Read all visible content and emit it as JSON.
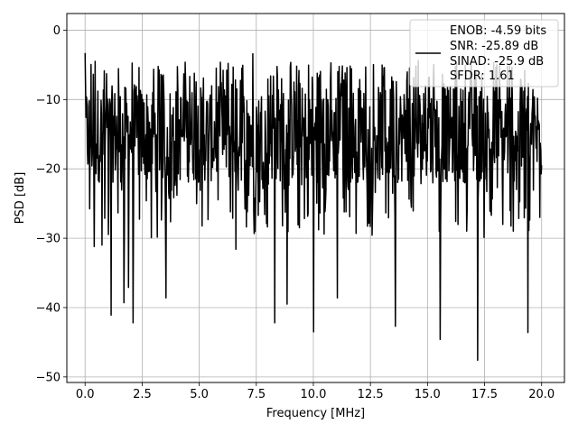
{
  "chart_data": {
    "type": "line",
    "title": "",
    "xlabel": "Frequency [MHz]",
    "ylabel": "PSD [dB]",
    "xlim": [
      -0.8,
      21.0
    ],
    "ylim": [
      -50.8,
      2.4
    ],
    "xticks": [
      0.0,
      2.5,
      5.0,
      7.5,
      10.0,
      12.5,
      15.0,
      17.5,
      20.0
    ],
    "xtick_labels": [
      "0.0",
      "2.5",
      "5.0",
      "7.5",
      "10.0",
      "12.5",
      "15.0",
      "17.5",
      "20.0"
    ],
    "yticks": [
      0,
      -10,
      -20,
      -30,
      -40,
      -50
    ],
    "ytick_labels": [
      "0",
      "−10",
      "−20",
      "−30",
      "−40",
      "−50"
    ],
    "grid": true,
    "line_color": "#000000",
    "legend": {
      "placement": "top-right",
      "entries": [
        "ENOB: -4.59 bits",
        "SNR: -25.89 dB",
        "SINAD: -25.9 dB",
        "SFDR: 1.61"
      ]
    },
    "series": [
      {
        "x_range": [
          0.0,
          20.0
        ],
        "point_count": 1000,
        "typical_range_db": [
          -22,
          -8
        ],
        "max_db": -3.3,
        "dips": [
          {
            "x": 0.0,
            "y": -32.6
          },
          {
            "x": 0.4,
            "y": -31.2
          },
          {
            "x": 0.75,
            "y": -31.0
          },
          {
            "x": 1.15,
            "y": -41.1
          },
          {
            "x": 1.7,
            "y": -39.3
          },
          {
            "x": 1.9,
            "y": -37.1
          },
          {
            "x": 2.1,
            "y": -42.2
          },
          {
            "x": 3.55,
            "y": -38.6
          },
          {
            "x": 6.6,
            "y": -31.6
          },
          {
            "x": 8.3,
            "y": -42.2
          },
          {
            "x": 8.85,
            "y": -39.5
          },
          {
            "x": 10.0,
            "y": -43.5
          },
          {
            "x": 11.05,
            "y": -38.6
          },
          {
            "x": 13.6,
            "y": -42.7
          },
          {
            "x": 15.55,
            "y": -44.6
          },
          {
            "x": 17.2,
            "y": -47.6
          },
          {
            "x": 19.4,
            "y": -43.6
          }
        ],
        "peaks": [
          {
            "x": 0.0,
            "y": -3.3
          },
          {
            "x": 7.35,
            "y": -3.4
          },
          {
            "x": 0.45,
            "y": -4.5
          },
          {
            "x": 14.6,
            "y": -4.4
          }
        ]
      }
    ]
  }
}
